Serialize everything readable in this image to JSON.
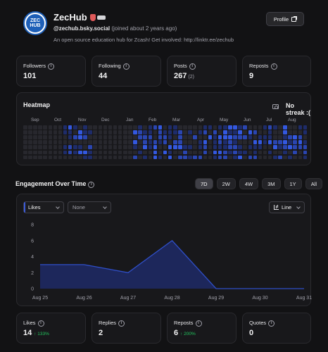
{
  "profile": {
    "name": "ZecHub",
    "handle": "@zechub.bsky.social",
    "joined": "(joined about 2 years ago)",
    "bio": "An open source education hub for Zcash! Get involved: http://linktr.ee/zechub",
    "avatar_text_top": "ZEC",
    "avatar_text_bottom": "HUB",
    "profile_button": "Profile"
  },
  "stats": [
    {
      "label": "Followers",
      "value": "101",
      "extra": ""
    },
    {
      "label": "Following",
      "value": "44",
      "extra": ""
    },
    {
      "label": "Posts",
      "value": "267",
      "extra": "(2)"
    },
    {
      "label": "Reposts",
      "value": "9",
      "extra": ""
    }
  ],
  "heatmap": {
    "title": "Heatmap",
    "streak": "No streak :(",
    "months": [
      "Sep",
      "Oct",
      "Nov",
      "Dec",
      "Jan",
      "Feb",
      "Mar",
      "Apr",
      "May",
      "Jun",
      "Jul",
      "Aug"
    ],
    "colors": [
      "#27272d",
      "#1e2c6a",
      "#2a45b0",
      "#3358e0"
    ]
  },
  "engagement": {
    "title": "Engagement Over Time",
    "ranges": [
      "7D",
      "2W",
      "4W",
      "3M",
      "1Y",
      "All"
    ],
    "active_range": "7D",
    "metric_select": "Likes",
    "compare_select": "None",
    "chart_type_select": "Line"
  },
  "chart_data": {
    "type": "area",
    "categories": [
      "Aug 25",
      "Aug 26",
      "Aug 27",
      "Aug 28",
      "Aug 29",
      "Aug 30",
      "Aug 31"
    ],
    "series": [
      {
        "values": [
          3,
          3,
          2,
          6,
          0,
          0,
          0
        ]
      }
    ],
    "ylim": [
      0,
      8
    ],
    "yticks": [
      0,
      2,
      4,
      6,
      8
    ],
    "grid": false,
    "color": "#2f4fc9"
  },
  "bottom_stats": [
    {
      "label": "Likes",
      "value": "14",
      "delta": "↑ 133%"
    },
    {
      "label": "Replies",
      "value": "2",
      "delta": ""
    },
    {
      "label": "Reposts",
      "value": "6",
      "delta": "↑ 200%"
    },
    {
      "label": "Quotes",
      "value": "0",
      "delta": ""
    }
  ]
}
